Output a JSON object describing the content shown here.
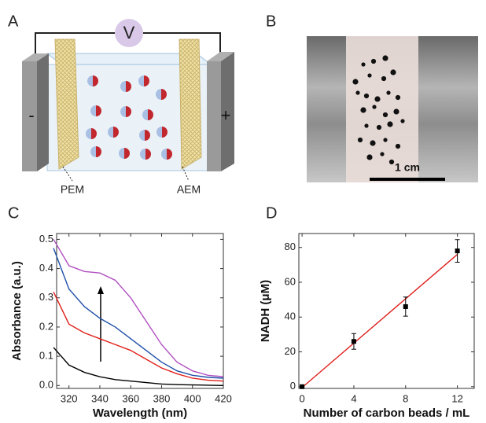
{
  "panels": {
    "a": {
      "label": "A",
      "voltage": "V",
      "negative": "-",
      "positive": "+",
      "membranes": [
        "PEM",
        "AEM"
      ]
    },
    "b": {
      "label": "B",
      "scale_bar": "1 cm"
    }
  },
  "chart_data": [
    {
      "type": "line",
      "panel_label": "C",
      "x_label": "Wavelength (nm)",
      "y_label": "Absorbance (a.u.)",
      "x": [
        310,
        320,
        330,
        340,
        350,
        360,
        370,
        380,
        390,
        400,
        410,
        420
      ],
      "series": [
        {
          "color": "#000000",
          "values": [
            0.13,
            0.07,
            0.045,
            0.03,
            0.02,
            0.015,
            0.01,
            0.005,
            0.003,
            0.002,
            0.001,
            0.0
          ]
        },
        {
          "color": "#e0201b",
          "values": [
            0.32,
            0.21,
            0.18,
            0.16,
            0.14,
            0.12,
            0.09,
            0.06,
            0.04,
            0.025,
            0.018,
            0.015
          ]
        },
        {
          "color": "#1f4fa8",
          "values": [
            0.47,
            0.33,
            0.27,
            0.23,
            0.2,
            0.16,
            0.12,
            0.08,
            0.05,
            0.035,
            0.028,
            0.025
          ]
        },
        {
          "color": "#b04fc0",
          "values": [
            0.5,
            0.41,
            0.39,
            0.385,
            0.36,
            0.3,
            0.22,
            0.14,
            0.08,
            0.05,
            0.035,
            0.03
          ]
        }
      ],
      "xlim": [
        312,
        420
      ],
      "xticks": [
        320,
        340,
        360,
        380,
        400,
        420
      ],
      "ylim": [
        -0.01,
        0.52
      ],
      "yticks": [
        {
          "value": 0,
          "label": "0.0"
        },
        0.1,
        0.2,
        0.3,
        0.4,
        0.5
      ]
    },
    {
      "type": "scatter",
      "panel_label": "D",
      "x_label": "Number of carbon beads / mL",
      "y_label": "NADH (μM)",
      "x": [
        0,
        4,
        8,
        12
      ],
      "values": [
        0,
        26,
        46,
        78
      ],
      "errors": [
        0,
        4.5,
        5.5,
        6.5
      ],
      "color": "#000000",
      "fit_x": [
        0,
        12
      ],
      "fit_values": [
        -0.5,
        76
      ],
      "fit_color": "#e0201b",
      "xlim": [
        -0.25,
        13.3
      ],
      "xticks": [
        0,
        4,
        8,
        12
      ],
      "ylim": [
        -1,
        88
      ],
      "yticks": [
        0,
        20,
        40,
        60,
        80
      ]
    }
  ]
}
